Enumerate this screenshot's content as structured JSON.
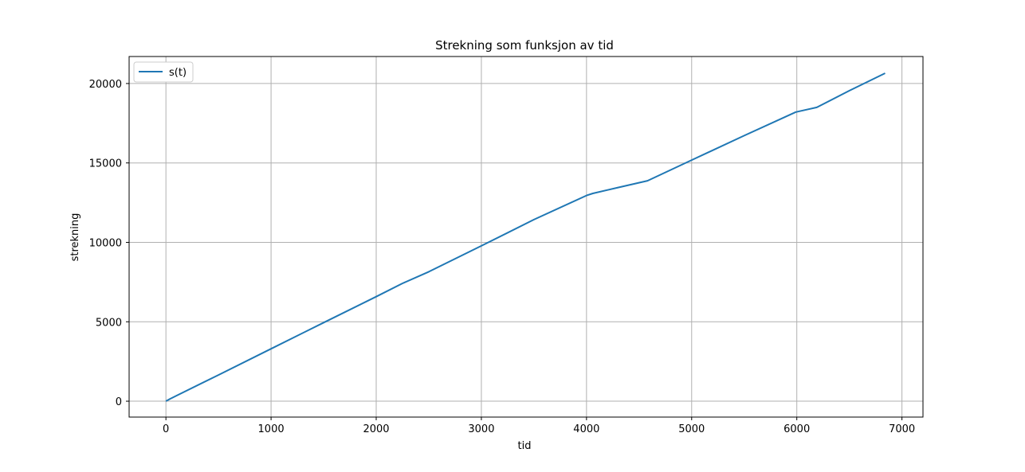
{
  "chart_data": {
    "type": "line",
    "title": "Strekning som funksjon av tid",
    "xlabel": "tid",
    "ylabel": "strekning",
    "xlim": [
      -350,
      7200
    ],
    "ylim": [
      -1000,
      21700
    ],
    "xticks": [
      0,
      1000,
      2000,
      3000,
      4000,
      5000,
      6000,
      7000
    ],
    "yticks": [
      0,
      5000,
      10000,
      15000,
      20000
    ],
    "grid": true,
    "legend_position": "upper-left",
    "series": [
      {
        "name": "s(t)",
        "color": "#1f77b4",
        "x": [
          0,
          40,
          100,
          500,
          1000,
          1500,
          2000,
          2250,
          2500,
          3000,
          3500,
          4000,
          4060,
          4300,
          4580,
          5000,
          5500,
          5990,
          6190,
          6500,
          6840
        ],
        "y": [
          0,
          150,
          350,
          1650,
          3300,
          4950,
          6580,
          7420,
          8150,
          9780,
          11430,
          12950,
          13080,
          13450,
          13880,
          15180,
          16720,
          18200,
          18500,
          19550,
          20650
        ]
      }
    ]
  }
}
